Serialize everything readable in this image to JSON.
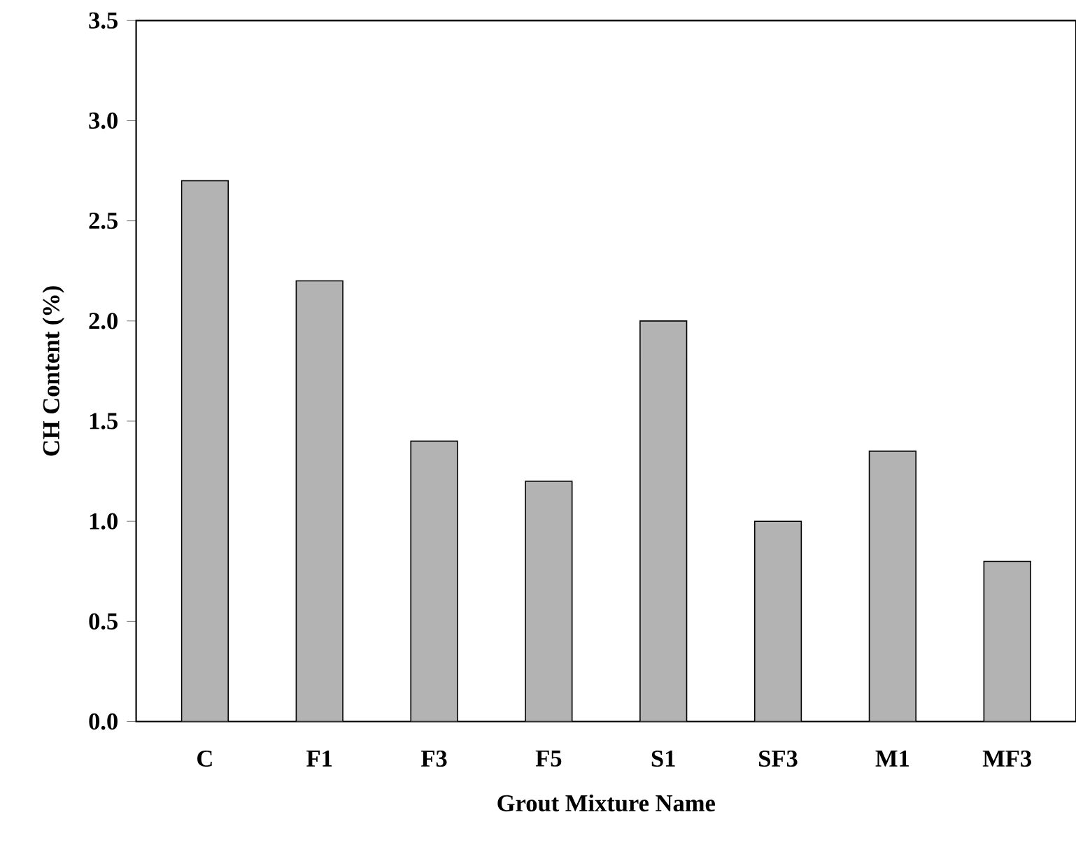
{
  "chart_data": {
    "type": "bar",
    "xlabel": "Grout Mixture Name",
    "ylabel": "CH Content (%)",
    "categories": [
      "C",
      "F1",
      "F3",
      "F5",
      "S1",
      "SF3",
      "M1",
      "MF3"
    ],
    "values": [
      2.7,
      2.2,
      1.4,
      1.2,
      2.0,
      1.0,
      1.35,
      0.8
    ],
    "color": "#b3b3b3",
    "ylim": [
      0,
      3.5
    ],
    "yticks": [
      {
        "value": 0,
        "label": "0.0"
      },
      0.5,
      {
        "value": 1,
        "label": "1.0"
      },
      1.5,
      {
        "value": 2,
        "label": "2.0"
      },
      2.5,
      {
        "value": 3,
        "label": "3.0"
      },
      3.5
    ],
    "grid": false
  }
}
